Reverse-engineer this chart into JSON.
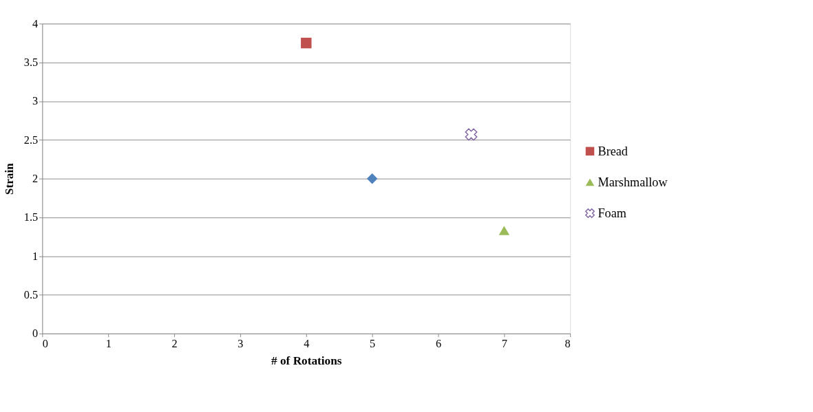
{
  "chart_data": {
    "type": "scatter",
    "xlabel": "# of Rotations",
    "ylabel": "Strain",
    "xlim": [
      0,
      8
    ],
    "xticks": [
      0,
      1,
      2,
      3,
      4,
      5,
      6,
      7,
      8
    ],
    "ylim": [
      0,
      4
    ],
    "yticks": [
      0,
      0.5,
      1,
      1.5,
      2,
      2.5,
      3,
      3.5,
      4
    ],
    "grid": "y",
    "legend": "right",
    "series": [
      {
        "color": "#4f81bd",
        "marker": "diamond",
        "x": [
          5
        ],
        "values": [
          2
        ]
      },
      {
        "name": "Bread",
        "color": "#c0504d",
        "marker": "square",
        "x": [
          4
        ],
        "values": [
          3.75
        ]
      },
      {
        "name": "Marshmallow",
        "color": "#9bbb59",
        "marker": "triangle",
        "x": [
          7
        ],
        "values": [
          1.33
        ]
      },
      {
        "name": "Foam",
        "color": "#8064a2",
        "marker": "cross",
        "x": [
          6.5
        ],
        "values": [
          2.57
        ]
      }
    ]
  }
}
